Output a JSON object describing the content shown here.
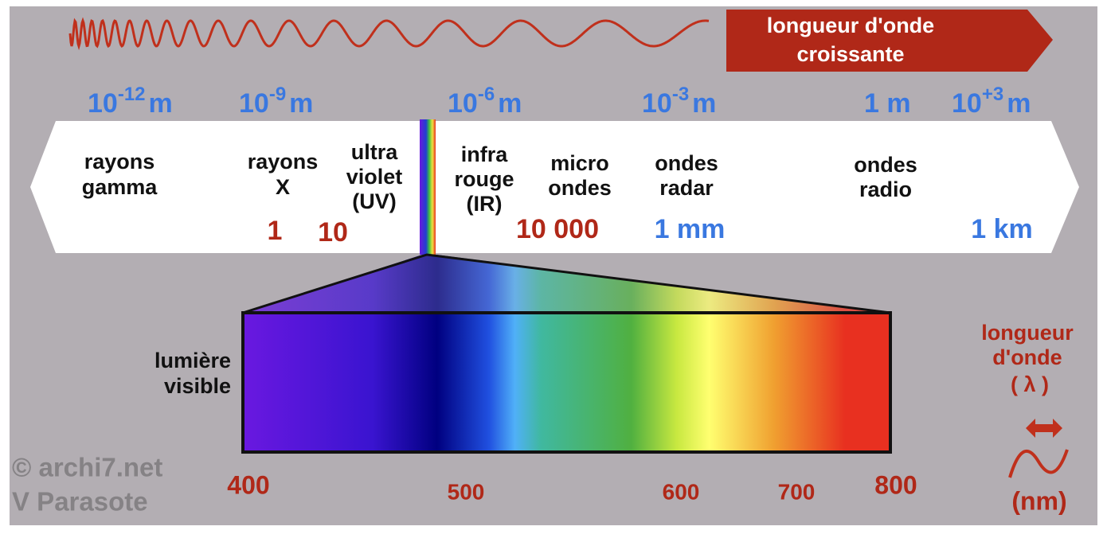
{
  "arrow_label": [
    "longueur d'onde",
    "croissante"
  ],
  "scale": [
    {
      "base": "10",
      "exp": "-12",
      "unit": "m"
    },
    {
      "base": "10",
      "exp": "-9",
      "unit": "m"
    },
    {
      "base": "10",
      "exp": "-6",
      "unit": "m"
    },
    {
      "base": "10",
      "exp": "-3",
      "unit": "m"
    },
    {
      "text": "1 m"
    },
    {
      "base": "10",
      "exp": "+3",
      "unit": "m"
    }
  ],
  "bands": [
    [
      "rayons",
      "gamma"
    ],
    [
      "rayons",
      "X"
    ],
    [
      "ultra",
      "violet",
      "(UV)"
    ],
    [
      "infra",
      "rouge",
      "(IR)"
    ],
    [
      "micro",
      "ondes"
    ],
    [
      "ondes",
      "radar"
    ],
    [
      "ondes",
      "radio"
    ]
  ],
  "nm_marks": [
    "1",
    "10",
    "10 000",
    "1 mm",
    "1 km"
  ],
  "visible_label": [
    "lumière",
    "visible"
  ],
  "visible_axis": [
    "400",
    "500",
    "600",
    "700",
    "800"
  ],
  "unit_legend": [
    "longueur",
    "d'onde",
    "( λ )",
    "(nm)"
  ],
  "credits": [
    "© archi7.net",
    "V Parasote"
  ]
}
